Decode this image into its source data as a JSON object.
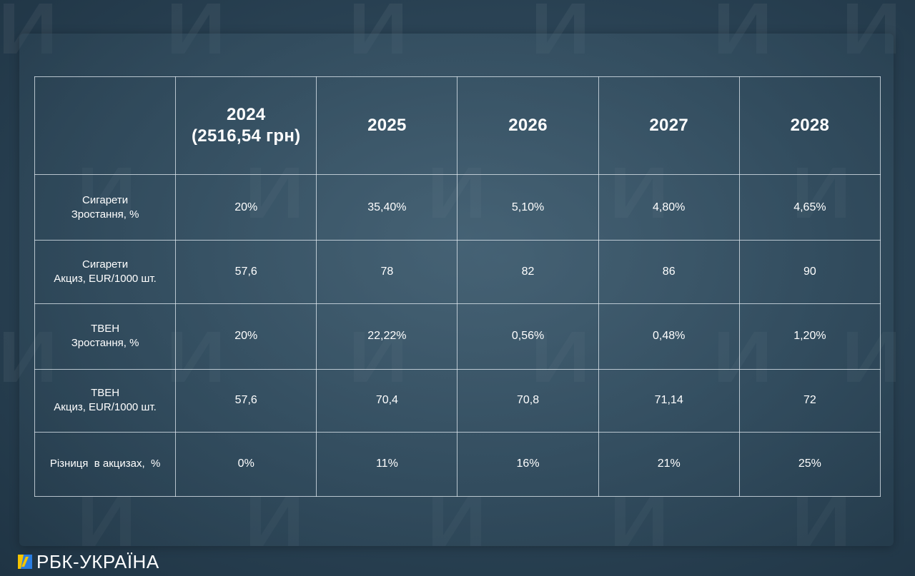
{
  "table": {
    "columns": [
      "",
      "2024",
      "(2516,54 грн)",
      "2025",
      "2026",
      "2027",
      "2028"
    ],
    "header": {
      "col2024_line1": "2024",
      "col2024_line2": "(2516,54 грн)",
      "col2025": "2025",
      "col2026": "2026",
      "col2027": "2027",
      "col2028": "2028"
    },
    "rows": [
      {
        "label_line1": "Сигарети",
        "label_line2": "Зростання, %",
        "values": [
          "20%",
          "35,40%",
          "5,10%",
          "4,80%",
          "4,65%"
        ]
      },
      {
        "label_line1": "Сигарети",
        "label_line2": "Акциз, EUR/1000 шт.",
        "values": [
          "57,6",
          "78",
          "82",
          "86",
          "90"
        ]
      },
      {
        "label_line1": "ТВЕН",
        "label_line2": "Зростання, %",
        "values": [
          "20%",
          "22,22%",
          "0,56%",
          "0,48%",
          "1,20%"
        ]
      },
      {
        "label_line1": "ТВЕН",
        "label_line2": "Акциз, EUR/1000 шт.",
        "values": [
          "57,6",
          "70,4",
          "70,8",
          "71,14",
          "72"
        ]
      },
      {
        "label_line1": "Різниця  в акцизах,  %",
        "label_line2": "",
        "values": [
          "0%",
          "11%",
          "16%",
          "21%",
          "25%"
        ]
      }
    ]
  },
  "chart_data": {
    "type": "table",
    "columns": [
      "2024 (2516,54 грн)",
      "2025",
      "2026",
      "2027",
      "2028"
    ],
    "rows": [
      {
        "label": "Сигарети Зростання, %",
        "values": [
          "20%",
          "35,40%",
          "5,10%",
          "4,80%",
          "4,65%"
        ]
      },
      {
        "label": "Сигарети Акциз, EUR/1000 шт.",
        "values": [
          "57,6",
          "78",
          "82",
          "86",
          "90"
        ]
      },
      {
        "label": "ТВЕН Зростання, %",
        "values": [
          "20%",
          "22,22%",
          "0,56%",
          "0,48%",
          "1,20%"
        ]
      },
      {
        "label": "ТВЕН Акциз, EUR/1000 шт.",
        "values": [
          "57,6",
          "70,4",
          "70,8",
          "71,14",
          "72"
        ]
      },
      {
        "label": "Різниця  в акцизах,  %",
        "values": [
          "0%",
          "11%",
          "16%",
          "21%",
          "25%"
        ]
      }
    ]
  },
  "brand": {
    "name": "РБК-УКРАЇНА",
    "logo_colors": [
      "#f5c400",
      "#2a7de1"
    ]
  },
  "colors": {
    "background": "#2c4557",
    "panel": "#3c5a6c",
    "grid": "#e6eef4",
    "text": "#ffffff"
  }
}
